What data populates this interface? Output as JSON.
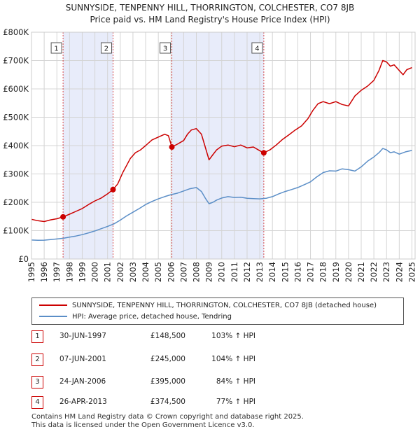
{
  "chart_data": {
    "type": "line",
    "title": "SUNNYSIDE, TENPENNY HILL, THORRINGTON, COLCHESTER, CO7 8JB",
    "subtitle": "Price paid vs. HM Land Registry's House Price Index (HPI)",
    "x_range": [
      1995,
      2025.25
    ],
    "ylim": [
      0,
      800000
    ],
    "y_ticks": [
      0,
      100000,
      200000,
      300000,
      400000,
      500000,
      600000,
      700000,
      800000
    ],
    "y_tick_labels": [
      "£0",
      "£100K",
      "£200K",
      "£300K",
      "£400K",
      "£500K",
      "£600K",
      "£700K",
      "£800K"
    ],
    "x_ticks": [
      1995,
      1996,
      1997,
      1998,
      1999,
      2000,
      2001,
      2002,
      2003,
      2004,
      2005,
      2006,
      2007,
      2008,
      2009,
      2010,
      2011,
      2012,
      2013,
      2014,
      2015,
      2016,
      2017,
      2018,
      2019,
      2020,
      2021,
      2022,
      2023,
      2024,
      2025
    ],
    "grid": true,
    "series": [
      {
        "name": "SUNNYSIDE, TENPENNY HILL, THORRINGTON, COLCHESTER, CO7 8JB (detached house)",
        "color": "#cc0000",
        "x": [
          1995.0,
          1995.5,
          1996.0,
          1996.5,
          1997.0,
          1997.49,
          1998.0,
          1998.5,
          1999.0,
          1999.5,
          2000.0,
          2000.5,
          2001.0,
          2001.43,
          2001.8,
          2002.2,
          2002.5,
          2002.8,
          2003.2,
          2003.6,
          2004.0,
          2004.5,
          2005.0,
          2005.5,
          2005.8,
          2006.07,
          2006.5,
          2007.0,
          2007.3,
          2007.6,
          2008.0,
          2008.4,
          2008.7,
          2009.0,
          2009.3,
          2009.6,
          2010.0,
          2010.5,
          2011.0,
          2011.5,
          2012.0,
          2012.5,
          2013.0,
          2013.32,
          2013.8,
          2014.3,
          2014.8,
          2015.3,
          2015.8,
          2016.3,
          2016.8,
          2017.2,
          2017.6,
          2018.0,
          2018.5,
          2019.0,
          2019.5,
          2020.0,
          2020.5,
          2021.0,
          2021.5,
          2022.0,
          2022.4,
          2022.7,
          2023.0,
          2023.3,
          2023.6,
          2024.0,
          2024.3,
          2024.6,
          2025.0
        ],
        "values": [
          140000,
          135000,
          132000,
          138000,
          142000,
          148500,
          158000,
          168000,
          178000,
          192000,
          205000,
          215000,
          230000,
          245000,
          265000,
          305000,
          330000,
          355000,
          375000,
          385000,
          400000,
          420000,
          430000,
          440000,
          435000,
          395000,
          405000,
          418000,
          440000,
          455000,
          460000,
          440000,
          395000,
          350000,
          368000,
          385000,
          398000,
          402000,
          396000,
          402000,
          392000,
          395000,
          382000,
          374500,
          385000,
          402000,
          422000,
          438000,
          455000,
          470000,
          495000,
          525000,
          548000,
          555000,
          548000,
          555000,
          545000,
          540000,
          575000,
          595000,
          610000,
          630000,
          665000,
          700000,
          695000,
          680000,
          685000,
          665000,
          650000,
          668000,
          675000
        ]
      },
      {
        "name": "HPI: Average price, detached house, Tendring",
        "color": "#5b8ec7",
        "x": [
          1995.0,
          1995.5,
          1996.0,
          1996.5,
          1997.0,
          1997.5,
          1998.0,
          1998.5,
          1999.0,
          1999.5,
          2000.0,
          2000.5,
          2001.0,
          2001.5,
          2002.0,
          2002.5,
          2003.0,
          2003.5,
          2004.0,
          2004.5,
          2005.0,
          2005.5,
          2006.0,
          2006.5,
          2007.0,
          2007.5,
          2008.0,
          2008.4,
          2008.7,
          2009.0,
          2009.3,
          2009.6,
          2010.0,
          2010.5,
          2011.0,
          2011.5,
          2012.0,
          2012.5,
          2013.0,
          2013.5,
          2014.0,
          2014.5,
          2015.0,
          2015.5,
          2016.0,
          2016.5,
          2017.0,
          2017.5,
          2018.0,
          2018.5,
          2019.0,
          2019.5,
          2020.0,
          2020.5,
          2021.0,
          2021.5,
          2022.0,
          2022.4,
          2022.7,
          2023.0,
          2023.3,
          2023.6,
          2024.0,
          2024.5,
          2025.0
        ],
        "values": [
          67000,
          66000,
          66500,
          68500,
          70500,
          73000,
          77000,
          81000,
          86000,
          92000,
          99000,
          107000,
          115000,
          124000,
          137000,
          152000,
          165000,
          178000,
          192000,
          203000,
          212000,
          220000,
          227000,
          232000,
          240000,
          248000,
          252000,
          238000,
          215000,
          195000,
          200000,
          208000,
          215000,
          220000,
          217000,
          218000,
          214000,
          213000,
          212000,
          214000,
          220000,
          230000,
          238000,
          245000,
          252000,
          262000,
          272000,
          290000,
          305000,
          311000,
          310000,
          318000,
          315000,
          310000,
          325000,
          345000,
          360000,
          375000,
          390000,
          385000,
          375000,
          378000,
          370000,
          378000,
          383000
        ]
      }
    ],
    "purchases": [
      {
        "label": "1",
        "x": 1997.49,
        "value": 148500
      },
      {
        "label": "2",
        "x": 2001.43,
        "value": 245000
      },
      {
        "label": "3",
        "x": 2006.07,
        "value": 395000
      },
      {
        "label": "4",
        "x": 2013.32,
        "value": 374500
      }
    ],
    "shaded_periods": [
      [
        1997.49,
        2001.43
      ],
      [
        2006.07,
        2013.32
      ]
    ]
  },
  "legend": {
    "property_label": "SUNNYSIDE, TENPENNY HILL, THORRINGTON, COLCHESTER, CO7 8JB (detached house)",
    "hpi_label": "HPI: Average price, detached house, Tendring"
  },
  "transactions": [
    {
      "num": "1",
      "date": "30-JUN-1997",
      "price": "£148,500",
      "hpi": "103% ↑ HPI"
    },
    {
      "num": "2",
      "date": "07-JUN-2001",
      "price": "£245,000",
      "hpi": "104% ↑ HPI"
    },
    {
      "num": "3",
      "date": "24-JAN-2006",
      "price": "£395,000",
      "hpi": "84% ↑ HPI"
    },
    {
      "num": "4",
      "date": "26-APR-2013",
      "price": "£374,500",
      "hpi": "77% ↑ HPI"
    }
  ],
  "footer": {
    "line1": "Contains HM Land Registry data © Crown copyright and database right 2025.",
    "line2": "This data is licensed under the Open Government Licence v3.0."
  }
}
